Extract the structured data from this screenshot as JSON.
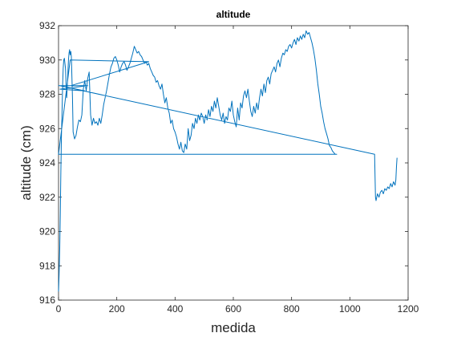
{
  "chart_data": {
    "type": "line",
    "title": "altitude",
    "xlabel": "medida",
    "ylabel": "altitude (cm)",
    "xlim": [
      0,
      1200
    ],
    "ylim": [
      916,
      932
    ],
    "xticks": [
      0,
      200,
      400,
      600,
      800,
      1000,
      1200
    ],
    "yticks": [
      916,
      918,
      920,
      922,
      924,
      926,
      928,
      930,
      932
    ],
    "grid": false,
    "line_color": "#0072BD",
    "series": [
      {
        "x": [
          0,
          2,
          4,
          6,
          8,
          10,
          12,
          14,
          16,
          18,
          20,
          22,
          24,
          26,
          28,
          30,
          32,
          34,
          36,
          38,
          40,
          42,
          44,
          46,
          48,
          50,
          55,
          60,
          65,
          70,
          75,
          80,
          85,
          90,
          95,
          100,
          105,
          110,
          115,
          120,
          125,
          130,
          135,
          140,
          145,
          150,
          155,
          160,
          165,
          170,
          175,
          180,
          185,
          190,
          195,
          200,
          205,
          210,
          215,
          220,
          225,
          230,
          235,
          240,
          245,
          250,
          255,
          260,
          265,
          270,
          275,
          280,
          285,
          290,
          295,
          300,
          305,
          310,
          315,
          320,
          325,
          330,
          335,
          340,
          345,
          350,
          355,
          360,
          365,
          370,
          375,
          380,
          385,
          390,
          395,
          400,
          405,
          410,
          415,
          420,
          425,
          430,
          435,
          440,
          445,
          450,
          455,
          460,
          465,
          470,
          475,
          480,
          485,
          490,
          495,
          500,
          505,
          510,
          515,
          520,
          525,
          530,
          535,
          540,
          545,
          550,
          555,
          560,
          565,
          570,
          575,
          580,
          585,
          590,
          595,
          600,
          605,
          610,
          615,
          620,
          625,
          630,
          635,
          640,
          645,
          650,
          655,
          660,
          665,
          670,
          675,
          680,
          685,
          690,
          695,
          700,
          705,
          710,
          715,
          720,
          725,
          730,
          735,
          740,
          745,
          750,
          755,
          760,
          765,
          770,
          775,
          780,
          785,
          790,
          795,
          800,
          805,
          810,
          815,
          820,
          825,
          830,
          835,
          840,
          845,
          850,
          855,
          860,
          865,
          870,
          875,
          880,
          885,
          890,
          895,
          900,
          905,
          910,
          915,
          920,
          925,
          930,
          935,
          940,
          945,
          950,
          955,
          0,
          40,
          310,
          42,
          0,
          100,
          5,
          90,
          4,
          1085,
          1088,
          1090,
          1095,
          1100,
          1105,
          1110,
          1115,
          1120,
          1125,
          1130,
          1135,
          1140,
          1145,
          1150,
          1155,
          1158,
          1160,
          1162
        ],
        "y": [
          916.5,
          917.5,
          919,
          921,
          923.5,
          925.5,
          927,
          928.5,
          929.5,
          930,
          930.1,
          929.8,
          929.5,
          928.5,
          927.8,
          928.5,
          929.2,
          930,
          930.4,
          930.6,
          930.3,
          930.5,
          930.2,
          929,
          927.8,
          925.8,
          925.4,
          925.6,
          926.1,
          926.5,
          926.4,
          926.8,
          928.3,
          928.8,
          928.2,
          928.9,
          929.3,
          926.8,
          926.2,
          926.6,
          926.3,
          926.4,
          926.2,
          926.6,
          926.3,
          926.8,
          927.4,
          927.8,
          928.2,
          928.7,
          929.2,
          929.6,
          929.8,
          930.1,
          930.2,
          930.0,
          929.7,
          929.3,
          929.6,
          929.8,
          929.9,
          929.7,
          929.4,
          929.6,
          929.8,
          930.1,
          930.4,
          930.8,
          930.6,
          930.4,
          930.5,
          930.3,
          930.2,
          930.0,
          929.8,
          929.9,
          929.7,
          929.8,
          929.5,
          929.3,
          929.1,
          929.0,
          928.7,
          928.8,
          928.5,
          928.3,
          928.6,
          928.0,
          927.5,
          927.8,
          927.2,
          926.9,
          926.3,
          926.5,
          926.0,
          925.8,
          925.5,
          925.1,
          924.8,
          925.2,
          924.7,
          924.6,
          925.1,
          924.8,
          926.0,
          925.3,
          925.6,
          926.3,
          926.0,
          926.6,
          926.3,
          926.8,
          926.5,
          926.9,
          926.7,
          926.3,
          926.8,
          926.5,
          927.1,
          926.7,
          927.3,
          927.0,
          927.6,
          927.2,
          927.8,
          927.3,
          926.8,
          926.5,
          926.9,
          926.3,
          926.7,
          926.5,
          927.2,
          927.0,
          927.6,
          926.8,
          926.4,
          926.1,
          927.2,
          926.5,
          927.5,
          927.2,
          927.9,
          928.2,
          927.8,
          928.3,
          927.6,
          927.0,
          926.7,
          927.3,
          926.9,
          927.5,
          927.1,
          927.8,
          928.3,
          927.9,
          928.6,
          928.1,
          928.8,
          929.0,
          928.6,
          929.2,
          929.4,
          929.6,
          929.3,
          929.8,
          930.0,
          929.6,
          930.1,
          930.4,
          930.3,
          930.6,
          930.5,
          930.8,
          930.9,
          930.7,
          931.0,
          931.2,
          930.9,
          931.3,
          931.1,
          931.4,
          931.2,
          931.5,
          931.3,
          931.7,
          931.5,
          931.6,
          931.3,
          931.0,
          930.6,
          930.1,
          929.4,
          928.6,
          928.0,
          927.3,
          926.9,
          926.4,
          926.0,
          925.7,
          925.4,
          925.0,
          924.9,
          924.7,
          924.6,
          924.5,
          924.5,
          924.5,
          930.0,
          929.9,
          928.5,
          928.5,
          928.5,
          928.3,
          928.2,
          928.5,
          924.5,
          922.0,
          921.8,
          922.2,
          922.0,
          922.3,
          922.4,
          922.2,
          922.5,
          922.4,
          922.6,
          922.5,
          922.8,
          922.6,
          922.9,
          922.7,
          923.0,
          923.8,
          924.3
        ]
      }
    ]
  }
}
